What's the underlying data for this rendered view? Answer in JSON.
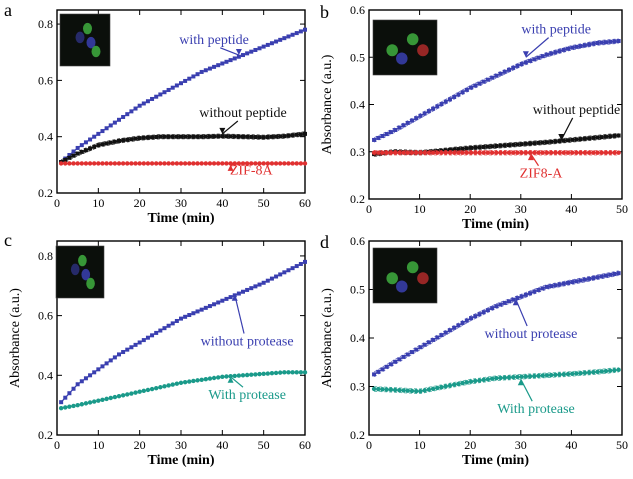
{
  "figure": {
    "panels": [
      "a",
      "b",
      "c",
      "d"
    ]
  },
  "colors": {
    "blue": "#3a3fb0",
    "black": "#111111",
    "red": "#e03030",
    "teal": "#1a9a8a",
    "inset_bg": "#0b0f0b"
  },
  "chart_data": [
    {
      "panel": "a",
      "type": "line",
      "xlabel": "Time (min)",
      "ylabel": "",
      "xlim": [
        0,
        60
      ],
      "ylim": [
        0.2,
        0.85
      ],
      "xticks": [
        0,
        10,
        20,
        30,
        40,
        50,
        60
      ],
      "yticks": [
        0.2,
        0.4,
        0.6,
        0.8
      ],
      "ytick_labels": [
        "0.2",
        "0.4",
        "0.6",
        "0.8"
      ],
      "inset_image": true,
      "series": [
        {
          "name": "with peptide",
          "color": "#3a3fb0",
          "marker": "square",
          "errorband": false,
          "x": [
            1,
            5,
            10,
            15,
            20,
            25,
            30,
            35,
            40,
            45,
            50,
            55,
            60
          ],
          "y": [
            0.31,
            0.36,
            0.41,
            0.46,
            0.51,
            0.55,
            0.59,
            0.63,
            0.66,
            0.69,
            0.72,
            0.75,
            0.78
          ],
          "label_text": "with peptide",
          "label_at": [
            38,
            0.73
          ],
          "arrow_to": [
            44,
            0.69
          ]
        },
        {
          "name": "without peptide",
          "color": "#111111",
          "marker": "square",
          "errorband": true,
          "x": [
            1,
            5,
            10,
            15,
            20,
            25,
            30,
            35,
            40,
            45,
            50,
            55,
            60
          ],
          "y": [
            0.31,
            0.34,
            0.37,
            0.385,
            0.395,
            0.4,
            0.4,
            0.4,
            0.402,
            0.4,
            0.398,
            0.402,
            0.41
          ],
          "label_text": "without peptide",
          "label_at": [
            45,
            0.47
          ],
          "arrow_to": [
            40,
            0.41
          ]
        },
        {
          "name": "ZIF-8A",
          "color": "#e03030",
          "marker": "circle",
          "errorband": false,
          "x": [
            1,
            5,
            10,
            15,
            20,
            25,
            30,
            35,
            40,
            45,
            50,
            55,
            60
          ],
          "y": [
            0.305,
            0.305,
            0.305,
            0.305,
            0.305,
            0.305,
            0.305,
            0.305,
            0.305,
            0.305,
            0.305,
            0.305,
            0.305
          ],
          "label_text": "ZIF-8A",
          "label_at": [
            47,
            0.265
          ],
          "arrow_to": [
            42,
            0.3
          ]
        }
      ]
    },
    {
      "panel": "b",
      "type": "line",
      "xlabel": "Time (min)",
      "ylabel": "Absorbance (a.u.)",
      "xlim": [
        0,
        50
      ],
      "ylim": [
        0.2,
        0.6
      ],
      "xticks": [
        0,
        10,
        20,
        30,
        40,
        50
      ],
      "yticks": [
        0.2,
        0.3,
        0.4,
        0.5,
        0.6
      ],
      "ytick_labels": [
        "0.2",
        "0.3",
        "0.4",
        "0.5",
        "0.6"
      ],
      "inset_image": true,
      "series": [
        {
          "name": "with peptide",
          "color": "#3a3fb0",
          "marker": "square",
          "errorband": true,
          "x": [
            1,
            5,
            10,
            15,
            20,
            25,
            30,
            35,
            40,
            45,
            50
          ],
          "y": [
            0.325,
            0.345,
            0.375,
            0.405,
            0.435,
            0.46,
            0.485,
            0.505,
            0.52,
            0.53,
            0.535
          ],
          "label_text": "with peptide",
          "label_at": [
            37,
            0.55
          ],
          "arrow_to": [
            31,
            0.5
          ]
        },
        {
          "name": "without peptide",
          "color": "#111111",
          "marker": "square",
          "errorband": true,
          "x": [
            1,
            5,
            10,
            15,
            20,
            25,
            30,
            35,
            40,
            45,
            50
          ],
          "y": [
            0.295,
            0.3,
            0.298,
            0.303,
            0.308,
            0.312,
            0.316,
            0.32,
            0.325,
            0.33,
            0.335
          ],
          "label_text": "without peptide",
          "label_at": [
            41,
            0.38
          ],
          "arrow_to": [
            38,
            0.325
          ]
        },
        {
          "name": "ZIF8-A",
          "color": "#e03030",
          "marker": "circle",
          "errorband": true,
          "x": [
            1,
            5,
            10,
            15,
            20,
            25,
            30,
            35,
            40,
            45,
            50
          ],
          "y": [
            0.298,
            0.298,
            0.298,
            0.298,
            0.298,
            0.298,
            0.298,
            0.298,
            0.298,
            0.298,
            0.298
          ],
          "label_text": "ZIF8-A",
          "label_at": [
            34,
            0.245
          ],
          "arrow_to": [
            32,
            0.295
          ]
        }
      ]
    },
    {
      "panel": "c",
      "type": "line",
      "xlabel": "Time (min)",
      "ylabel": "Absorbance (a.u.)",
      "xlim": [
        0,
        60
      ],
      "ylim": [
        0.2,
        0.85
      ],
      "xticks": [
        0,
        10,
        20,
        30,
        40,
        50,
        60
      ],
      "yticks": [
        0.2,
        0.4,
        0.6,
        0.8
      ],
      "ytick_labels": [
        "0.2",
        "0.4",
        "0.6",
        "0.8"
      ],
      "inset_image": true,
      "series": [
        {
          "name": "without protease",
          "color": "#3a3fb0",
          "marker": "square",
          "errorband": false,
          "x": [
            1,
            5,
            10,
            15,
            20,
            25,
            30,
            35,
            40,
            45,
            50,
            55,
            60
          ],
          "y": [
            0.31,
            0.37,
            0.42,
            0.47,
            0.51,
            0.55,
            0.59,
            0.62,
            0.65,
            0.68,
            0.71,
            0.745,
            0.78
          ],
          "label_text": "without protease",
          "label_at": [
            46,
            0.5
          ],
          "arrow_to": [
            43,
            0.67
          ]
        },
        {
          "name": "With protease",
          "color": "#1a9a8a",
          "marker": "circle",
          "errorband": false,
          "x": [
            1,
            5,
            10,
            15,
            20,
            25,
            30,
            35,
            40,
            45,
            50,
            55,
            60
          ],
          "y": [
            0.29,
            0.3,
            0.315,
            0.33,
            0.345,
            0.36,
            0.375,
            0.385,
            0.395,
            0.4,
            0.405,
            0.41,
            0.41
          ],
          "label_text": "With protease",
          "label_at": [
            46,
            0.32
          ],
          "arrow_to": [
            42,
            0.395
          ]
        }
      ]
    },
    {
      "panel": "d",
      "type": "line",
      "xlabel": "Time (min)",
      "ylabel": "Absorbance (a.u.)",
      "xlim": [
        0,
        50
      ],
      "ylim": [
        0.2,
        0.6
      ],
      "xticks": [
        0,
        10,
        20,
        30,
        40,
        50
      ],
      "yticks": [
        0.2,
        0.3,
        0.4,
        0.5,
        0.6
      ],
      "ytick_labels": [
        "0.2",
        "0.3",
        "0.4",
        "0.5",
        "0.6"
      ],
      "inset_image": true,
      "series": [
        {
          "name": "without protease",
          "color": "#3a3fb0",
          "marker": "square",
          "errorband": true,
          "x": [
            1,
            5,
            10,
            15,
            20,
            25,
            30,
            35,
            40,
            45,
            50
          ],
          "y": [
            0.325,
            0.35,
            0.38,
            0.41,
            0.44,
            0.465,
            0.485,
            0.505,
            0.515,
            0.525,
            0.535
          ],
          "label_text": "without protease",
          "label_at": [
            32,
            0.4
          ],
          "arrow_to": [
            29,
            0.48
          ]
        },
        {
          "name": "With protease",
          "color": "#1a9a8a",
          "marker": "circle",
          "errorband": true,
          "x": [
            1,
            5,
            10,
            15,
            20,
            25,
            30,
            35,
            40,
            45,
            50
          ],
          "y": [
            0.295,
            0.293,
            0.29,
            0.3,
            0.31,
            0.317,
            0.32,
            0.323,
            0.326,
            0.33,
            0.335
          ],
          "label_text": "With protease",
          "label_at": [
            33,
            0.245
          ],
          "arrow_to": [
            30,
            0.315
          ]
        }
      ]
    }
  ]
}
